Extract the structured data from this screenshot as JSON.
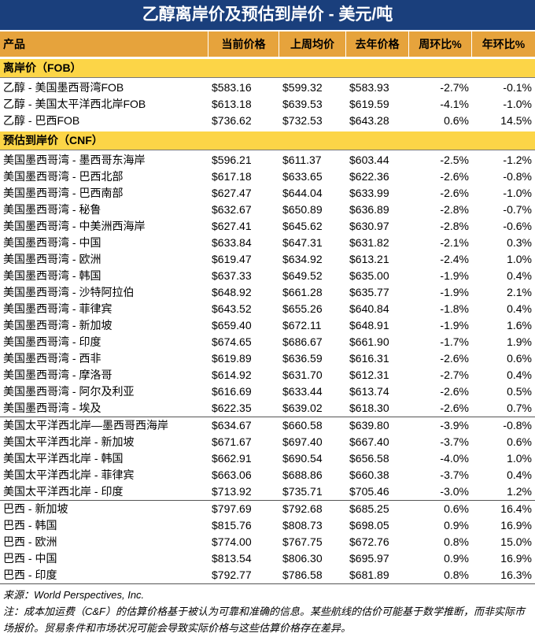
{
  "header": {
    "title": "乙醇离岸价及预估到岸价 - 美元/吨"
  },
  "table": {
    "columns": [
      "产品",
      "当前价格",
      "上周均价",
      "去年价格",
      "周环比%",
      "年环比%"
    ],
    "sections": [
      {
        "title": "离岸价（FOB）",
        "groups": [
          [
            [
              "乙醇 - 美国墨西哥湾FOB",
              "$583.16",
              "$599.32",
              "$583.93",
              "-2.7%",
              "-0.1%"
            ],
            [
              "乙醇 - 美国太平洋西北岸FOB",
              "$613.18",
              "$639.53",
              "$619.59",
              "-4.1%",
              "-1.0%"
            ],
            [
              "乙醇 - 巴西FOB",
              "$736.62",
              "$732.53",
              "$643.28",
              "0.6%",
              "14.5%"
            ]
          ]
        ]
      },
      {
        "title": "预估到岸价（CNF）",
        "groups": [
          [
            [
              "美国墨西哥湾 - 墨西哥东海岸",
              "$596.21",
              "$611.37",
              "$603.44",
              "-2.5%",
              "-1.2%"
            ],
            [
              "美国墨西哥湾 - 巴西北部",
              "$617.18",
              "$633.65",
              "$622.36",
              "-2.6%",
              "-0.8%"
            ],
            [
              "美国墨西哥湾 - 巴西南部",
              "$627.47",
              "$644.04",
              "$633.99",
              "-2.6%",
              "-1.0%"
            ],
            [
              "美国墨西哥湾 - 秘鲁",
              "$632.67",
              "$650.89",
              "$636.89",
              "-2.8%",
              "-0.7%"
            ],
            [
              "美国墨西哥湾 - 中美洲西海岸",
              "$627.41",
              "$645.62",
              "$630.97",
              "-2.8%",
              "-0.6%"
            ],
            [
              "美国墨西哥湾 - 中国",
              "$633.84",
              "$647.31",
              "$631.82",
              "-2.1%",
              "0.3%"
            ],
            [
              "美国墨西哥湾 - 欧洲",
              "$619.47",
              "$634.92",
              "$613.21",
              "-2.4%",
              "1.0%"
            ],
            [
              "美国墨西哥湾 - 韩国",
              "$637.33",
              "$649.52",
              "$635.00",
              "-1.9%",
              "0.4%"
            ],
            [
              "美国墨西哥湾 - 沙特阿拉伯",
              "$648.92",
              "$661.28",
              "$635.77",
              "-1.9%",
              "2.1%"
            ],
            [
              "美国墨西哥湾 - 菲律宾",
              "$643.52",
              "$655.26",
              "$640.84",
              "-1.8%",
              "0.4%"
            ],
            [
              "美国墨西哥湾 - 新加坡",
              "$659.40",
              "$672.11",
              "$648.91",
              "-1.9%",
              "1.6%"
            ],
            [
              "美国墨西哥湾 - 印度",
              "$674.65",
              "$686.67",
              "$661.90",
              "-1.7%",
              "1.9%"
            ],
            [
              "美国墨西哥湾 - 西非",
              "$619.89",
              "$636.59",
              "$616.31",
              "-2.6%",
              "0.6%"
            ],
            [
              "美国墨西哥湾 - 摩洛哥",
              "$614.92",
              "$631.70",
              "$612.31",
              "-2.7%",
              "0.4%"
            ],
            [
              "美国墨西哥湾 - 阿尔及利亚",
              "$616.69",
              "$633.44",
              "$613.74",
              "-2.6%",
              "0.5%"
            ],
            [
              "美国墨西哥湾 - 埃及",
              "$622.35",
              "$639.02",
              "$618.30",
              "-2.6%",
              "0.7%"
            ]
          ],
          [
            [
              "美国太平洋西北岸—墨西哥西海岸",
              "$634.67",
              "$660.58",
              "$639.80",
              "-3.9%",
              "-0.8%"
            ],
            [
              "美国太平洋西北岸 - 新加坡",
              "$671.67",
              "$697.40",
              "$667.40",
              "-3.7%",
              "0.6%"
            ],
            [
              "美国太平洋西北岸 - 韩国",
              "$662.91",
              "$690.54",
              "$656.58",
              "-4.0%",
              "1.0%"
            ],
            [
              "美国太平洋西北岸 - 菲律宾",
              "$663.06",
              "$688.86",
              "$660.38",
              "-3.7%",
              "0.4%"
            ],
            [
              "美国太平洋西北岸 - 印度",
              "$713.92",
              "$735.71",
              "$705.46",
              "-3.0%",
              "1.2%"
            ]
          ],
          [
            [
              "巴西 - 新加坡",
              "$797.69",
              "$792.68",
              "$685.25",
              "0.6%",
              "16.4%"
            ],
            [
              "巴西 - 韩国",
              "$815.76",
              "$808.73",
              "$698.05",
              "0.9%",
              "16.9%"
            ],
            [
              "巴西 - 欧洲",
              "$774.00",
              "$767.75",
              "$672.76",
              "0.8%",
              "15.0%"
            ],
            [
              "巴西 - 中国",
              "$813.54",
              "$806.30",
              "$695.97",
              "0.9%",
              "16.9%"
            ],
            [
              "巴西 - 印度",
              "$792.77",
              "$786.58",
              "$681.89",
              "0.8%",
              "16.3%"
            ]
          ]
        ]
      }
    ]
  },
  "footer": {
    "source": "来源：World Perspectives, Inc.",
    "note": "注：成本加运费（C&F）的估算价格基于被认为可靠和准确的信息。某些航线的估价可能基于数学推断，而非实际市场报价。贸易条件和市场状况可能会导致实际价格与这些估算价格存在差异。"
  }
}
